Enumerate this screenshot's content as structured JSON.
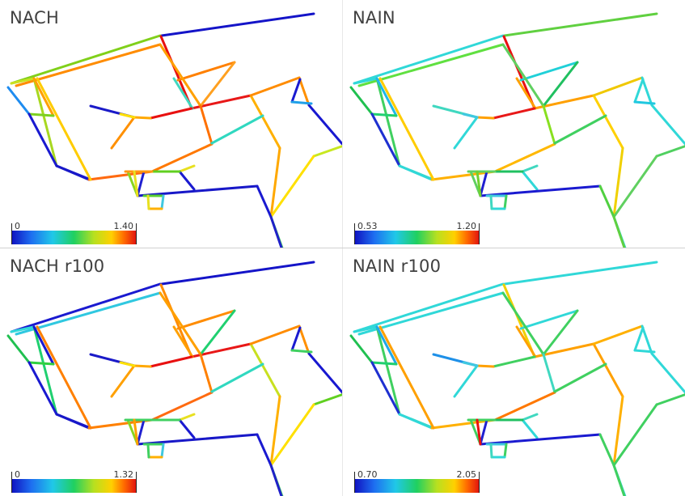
{
  "panels": [
    {
      "title": "NACH",
      "scale": {
        "min": "0",
        "max": "1.40"
      },
      "segment_colors": [
        "#1414c8",
        "#80d01a",
        "#ff8c00",
        "#e81010",
        "#a8d820",
        "#c8e020",
        "#ffa000",
        "#1e8cf0",
        "#7cd020",
        "#1a1ad0",
        "#1a20d0",
        "#e81818",
        "#40d8c0",
        "#ff8000",
        "#ffa020",
        "#1818c8",
        "#ffa000",
        "#ff7000",
        "#e81010",
        "#ffa800",
        "#ff6a10",
        "#ff7800",
        "#ffcc00",
        "#ffb000",
        "#ffa800",
        "#ff8c00",
        "#30d8c0",
        "#1a1ac8",
        "#ff9000",
        "#ffe000",
        "#ff9000",
        "#1818d0",
        "#1a1ad0",
        "#20a0e8",
        "#c8e820",
        "#ffe000",
        "#40d060",
        "#2020d0",
        "#8ad620",
        "#e8e020",
        "#1a1ad0",
        "#60d020",
        "#1818c8",
        "#1a1ad0",
        "#5ad030",
        "#40c8e0",
        "#ffb000",
        "#e8e020",
        "#ff9810",
        "#e8e020",
        "#2020c8"
      ]
    },
    {
      "title": "NAIN",
      "scale": {
        "min": "0.53",
        "max": "1.20"
      },
      "segment_colors": [
        "#60d040",
        "#30d8d8",
        "#60e040",
        "#e81010",
        "#40d060",
        "#30d8d8",
        "#20b8e8",
        "#20c050",
        "#20d070",
        "#1e30d0",
        "#40d8c0",
        "#ffa000",
        "#ffa000",
        "#20d0d8",
        "#20c060",
        "#30d8d8",
        "#60d060",
        "#88e020",
        "#e81818",
        "#ffa000",
        "#ffb000",
        "#ffb800",
        "#ffcc00",
        "#ffd000",
        "#f0d000",
        "#f0c800",
        "#40d060",
        "#40d8c0",
        "#30d8d8",
        "#40c8e0",
        "#30d8d8",
        "#30d8d8",
        "#30d8d8",
        "#20c8e0",
        "#50d060",
        "#60d060",
        "#30d8d8",
        "#2020d0",
        "#60d060",
        "#40d8c0",
        "#30d8d8",
        "#20c060",
        "#1a1ad0",
        "#50d040",
        "#40c8e0",
        "#40d060",
        "#30d8d8",
        "#40d8c0",
        "#60d060",
        "#70d030",
        "#60d040"
      ]
    },
    {
      "title": "NACH r100",
      "scale": {
        "min": "0",
        "max": "1.32"
      },
      "segment_colors": [
        "#1414c8",
        "#1a1ad0",
        "#30c8e0",
        "#ff8c00",
        "#20d070",
        "#30d8d8",
        "#1a1ad0",
        "#20c050",
        "#30d040",
        "#1a1ad0",
        "#1818c8",
        "#e81818",
        "#ffa000",
        "#ff8c00",
        "#20d070",
        "#1818c8",
        "#ffa000",
        "#ff8000",
        "#e81010",
        "#ffa800",
        "#ff8000",
        "#ff6a10",
        "#ff8000",
        "#c8e020",
        "#ffb000",
        "#ff8c00",
        "#30d8c0",
        "#1a1ac8",
        "#ffa000",
        "#ffe000",
        "#ff9000",
        "#1818d0",
        "#1a1ad0",
        "#40d060",
        "#60d020",
        "#ffe000",
        "#40d060",
        "#2020d0",
        "#8ad620",
        "#e8e020",
        "#1a1ad0",
        "#40d060",
        "#1818c8",
        "#1a1ad0",
        "#40d060",
        "#40c8e0",
        "#ffb000",
        "#40d060",
        "#40d060",
        "#ffa000",
        "#2020c8"
      ]
    },
    {
      "title": "NAIN r100",
      "scale": {
        "min": "0.70",
        "max": "2.05"
      },
      "segment_colors": [
        "#30d8d8",
        "#30d8d8",
        "#30d8d8",
        "#f0d000",
        "#40d060",
        "#30d8d8",
        "#20a8e8",
        "#20c050",
        "#20d070",
        "#1e30d0",
        "#40d8c0",
        "#ffa000",
        "#ffa000",
        "#30d8d8",
        "#40d060",
        "#30d8d8",
        "#40d060",
        "#40d8c0",
        "#40d060",
        "#ffa000",
        "#ffb000",
        "#ff7800",
        "#ffa000",
        "#ffa000",
        "#ffb000",
        "#ffb000",
        "#40d060",
        "#1e90e8",
        "#30d8d8",
        "#40c8e0",
        "#30d8d8",
        "#30d8d8",
        "#30d8d8",
        "#30d8d8",
        "#40d060",
        "#40d060",
        "#30d8d8",
        "#2020d0",
        "#40d060",
        "#40d8c0",
        "#30d8d8",
        "#20c060",
        "#1a1ad0",
        "#40d060",
        "#40c8e0",
        "#40d060",
        "#30d8d8",
        "#40d8c0",
        "#40d060",
        "#e81010",
        "#40d060"
      ]
    }
  ]
}
